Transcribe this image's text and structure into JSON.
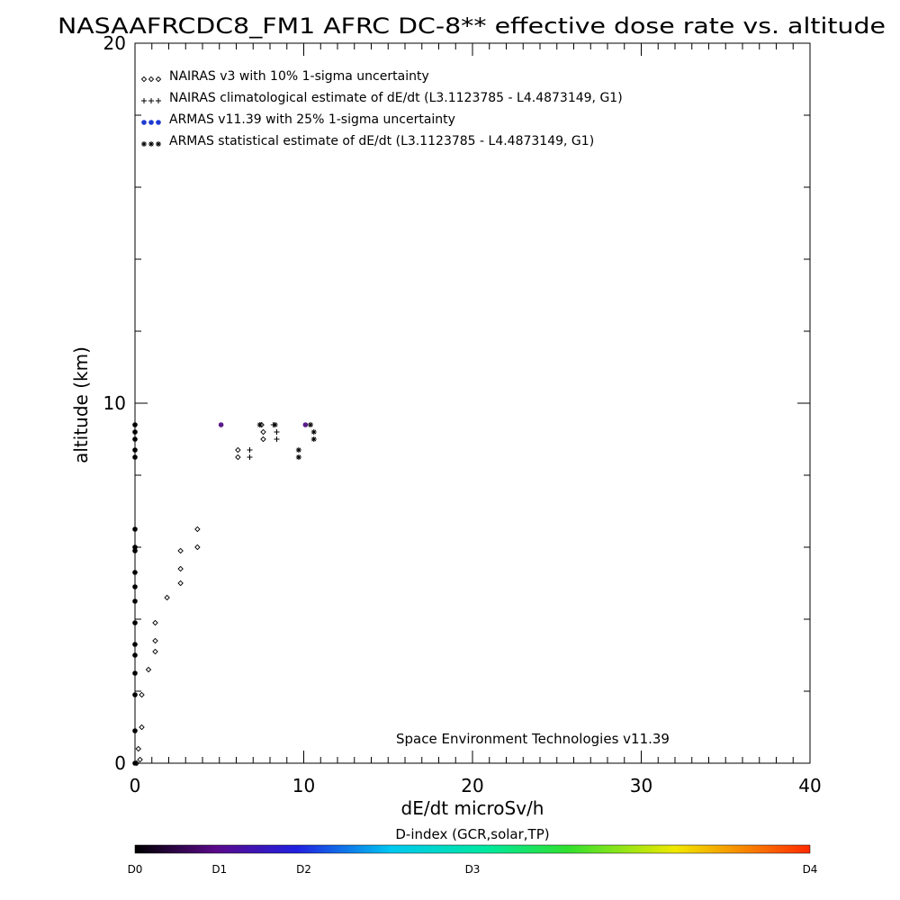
{
  "chart_data": {
    "type": "scatter",
    "title": "NASAAFRCDC8_FM1 AFRC DC-8** effective dose rate vs. altitude",
    "xlabel": "dE/dt microSv/h",
    "ylabel": "altitude (km)",
    "xlim": [
      0,
      40
    ],
    "ylim": [
      0,
      20
    ],
    "x_ticks": [
      0,
      10,
      20,
      30,
      40
    ],
    "y_ticks": [
      0,
      10,
      20
    ],
    "x_tick_labels": [
      "0",
      "10",
      "20",
      "30",
      "40"
    ],
    "y_tick_labels": [
      "0",
      "10",
      "20"
    ],
    "credit": "Space Environment Technologies v11.39",
    "legend_position": "top-left",
    "series": [
      {
        "name": "NAIRAS v3 with 10% 1-sigma uncertainty",
        "marker": "diamond",
        "color": "#000000",
        "points": [
          [
            0.1,
            0.0
          ],
          [
            0.2,
            0.4
          ],
          [
            0.3,
            0.1
          ],
          [
            0.4,
            1.0
          ],
          [
            0.4,
            1.9
          ],
          [
            0.8,
            2.6
          ],
          [
            1.2,
            3.1
          ],
          [
            1.2,
            3.4
          ],
          [
            1.2,
            3.9
          ],
          [
            1.9,
            4.6
          ],
          [
            2.7,
            5.0
          ],
          [
            2.7,
            5.4
          ],
          [
            2.7,
            5.9
          ],
          [
            3.7,
            6.0
          ],
          [
            3.7,
            6.5
          ],
          [
            6.1,
            8.5
          ],
          [
            6.1,
            8.7
          ],
          [
            7.6,
            9.0
          ],
          [
            7.6,
            9.2
          ],
          [
            7.5,
            9.4
          ]
        ]
      },
      {
        "name": "NAIRAS climatological estimate of dE/dt (L3.1123785 - L4.4873149, G1)",
        "marker": "plus",
        "color": "#000000",
        "points": [
          [
            6.8,
            8.5
          ],
          [
            6.8,
            8.7
          ],
          [
            8.4,
            9.0
          ],
          [
            8.4,
            9.2
          ],
          [
            8.2,
            9.4
          ]
        ]
      },
      {
        "name": "ARMAS v11.39 with 25% 1-sigma uncertainty",
        "marker": "dot",
        "color": "#1f3bd1",
        "points": [
          [
            0.0,
            0.0
          ],
          [
            0.0,
            0.9
          ],
          [
            0.0,
            1.9
          ],
          [
            0.0,
            2.5
          ],
          [
            0.0,
            3.0
          ],
          [
            0.0,
            3.3
          ],
          [
            0.0,
            3.9
          ],
          [
            0.0,
            4.5
          ],
          [
            0.0,
            4.9
          ],
          [
            0.0,
            5.3
          ],
          [
            0.0,
            5.9
          ],
          [
            0.0,
            6.0
          ],
          [
            0.0,
            6.5
          ],
          [
            0.0,
            8.5
          ],
          [
            0.0,
            8.7
          ],
          [
            0.0,
            9.0
          ],
          [
            0.0,
            9.2
          ],
          [
            0.0,
            9.4
          ],
          [
            5.1,
            9.4
          ],
          [
            10.1,
            9.4
          ]
        ]
      },
      {
        "name": "ARMAS statistical estimate of dE/dt (L3.1123785 - L4.4873149, G1)",
        "marker": "asterisk",
        "color": "#000000",
        "points": [
          [
            9.7,
            8.5
          ],
          [
            9.7,
            8.7
          ],
          [
            10.6,
            9.0
          ],
          [
            10.6,
            9.2
          ],
          [
            7.4,
            9.4
          ],
          [
            8.3,
            9.4
          ],
          [
            10.4,
            9.4
          ]
        ]
      }
    ],
    "colorbar": {
      "title": "D-index (GCR,solar,TP)",
      "labels": [
        {
          "text": "D0",
          "value": 0
        },
        {
          "text": "D1",
          "value": 0.125
        },
        {
          "text": "D2",
          "value": 0.25
        },
        {
          "text": "D3",
          "value": 0.5
        },
        {
          "text": "D4",
          "value": 1
        }
      ],
      "stops": [
        {
          "value": 0.0,
          "color": "#000000"
        },
        {
          "value": 0.12,
          "color": "#5a0a8a"
        },
        {
          "value": 0.24,
          "color": "#2020e0"
        },
        {
          "value": 0.38,
          "color": "#00c8f0"
        },
        {
          "value": 0.52,
          "color": "#00e8a0"
        },
        {
          "value": 0.64,
          "color": "#30e030"
        },
        {
          "value": 0.8,
          "color": "#f0e800"
        },
        {
          "value": 1.0,
          "color": "#ff2a00"
        }
      ]
    }
  }
}
